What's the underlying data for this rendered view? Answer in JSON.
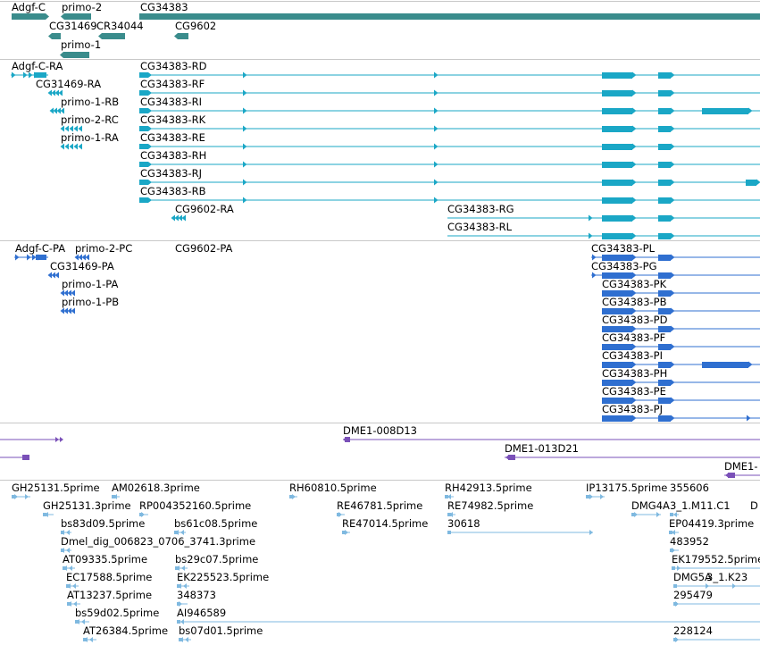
{
  "colors": {
    "gene": "#3a8c8c",
    "transcript_a": "#1aa7c6",
    "transcript_b": "#2f6fd0",
    "insertion": "#7a50b8",
    "est": "#7fb9e0",
    "separator": "#c8c8c8"
  },
  "tracks": {
    "genes": {
      "labels": [
        "Adgf-C",
        "primo-2",
        "CG34383",
        "CG31469",
        "CR34044",
        "CG9602",
        "primo-1"
      ]
    },
    "transcripts_a": {
      "labels": [
        "Adgf-C-RA",
        "CG31469-RA",
        "primo-1-RB",
        "primo-2-RC",
        "primo-1-RA",
        "CG34383-RD",
        "CG34383-RF",
        "CG34383-RI",
        "CG34383-RK",
        "CG34383-RE",
        "CG34383-RH",
        "CG34383-RJ",
        "CG34383-RB",
        "CG9602-RA",
        "CG34383-RG",
        "CG34383-RL"
      ]
    },
    "transcripts_b": {
      "labels": [
        "Adgf-C-PA",
        "primo-2-PC",
        "CG9602-PA",
        "CG31469-PA",
        "primo-1-PA",
        "primo-1-PB",
        "CG34383-PL",
        "CG34383-PG",
        "CG34383-PK",
        "CG34383-PB",
        "CG34383-PD",
        "CG34383-PF",
        "CG34383-PI",
        "CG34383-PH",
        "CG34383-PE",
        "CG34383-PJ"
      ]
    },
    "insertions": {
      "labels": [
        "DME1-008D13",
        "DME1-013D21",
        "DME1-"
      ]
    },
    "ests": {
      "labels": [
        "GH25131.5prime",
        "AM02618.3prime",
        "RH60810.5prime",
        "RH42913.5prime",
        "IP13175.5prime",
        "GH25131.3prime",
        "RP004352160.5prime",
        "RE46781.5prime",
        "RE74982.5prime",
        "DMG4A",
        "3_1.M11.C1",
        "D",
        "bs83d09.5prime",
        "bs61c08.5prime",
        "RE47014.5prime",
        "30618",
        "EP04419.3prime",
        "Dmel_dig_006823_0706_3741.3prime",
        "483952",
        "AT09335.5prime",
        "bs29c07.5prime",
        "EK179552.5prime",
        "EC17588.5prime",
        "EK225523.5prime",
        "DMG5A",
        "3_1.K23",
        "AT13237.5prime",
        "348373",
        "295479",
        "bs59d02.5prime",
        "AI946589",
        "AT26384.5prime",
        "bs07d01.5prime",
        "228124",
        "355606"
      ]
    }
  }
}
